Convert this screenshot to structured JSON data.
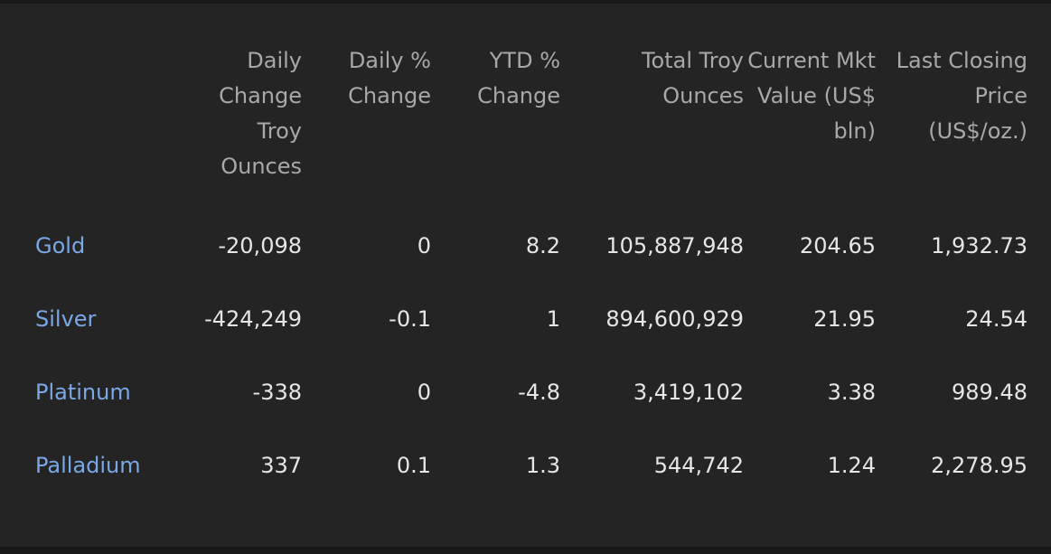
{
  "table": {
    "headers": [
      "",
      "Daily Change Troy Ounces",
      "Daily % Change",
      "YTD % Change",
      "Total Troy Ounces",
      "Current Mkt Value (US$ bln)",
      "Last Closing Price (US$/oz.)"
    ],
    "rows": [
      {
        "metal": "Gold",
        "daily_change_oz": "-20,098",
        "daily_pct": "0",
        "ytd_pct": "8.2",
        "total_oz": "105,887,948",
        "mkt_value": "204.65",
        "last_price": "1,932.73"
      },
      {
        "metal": "Silver",
        "daily_change_oz": "-424,249",
        "daily_pct": "-0.1",
        "ytd_pct": "1",
        "total_oz": "894,600,929",
        "mkt_value": "21.95",
        "last_price": "24.54"
      },
      {
        "metal": "Platinum",
        "daily_change_oz": "-338",
        "daily_pct": "0",
        "ytd_pct": "-4.8",
        "total_oz": "3,419,102",
        "mkt_value": "3.38",
        "last_price": "989.48"
      },
      {
        "metal": "Palladium",
        "daily_change_oz": "337",
        "daily_pct": "0.1",
        "ytd_pct": "1.3",
        "total_oz": "544,742",
        "mkt_value": "1.24",
        "last_price": "2,278.95"
      }
    ]
  },
  "colors": {
    "background": "#242424",
    "metal_link": "#7aa7e6",
    "header_text": "#a8a8a8",
    "cell_text": "#e6e6e6"
  }
}
